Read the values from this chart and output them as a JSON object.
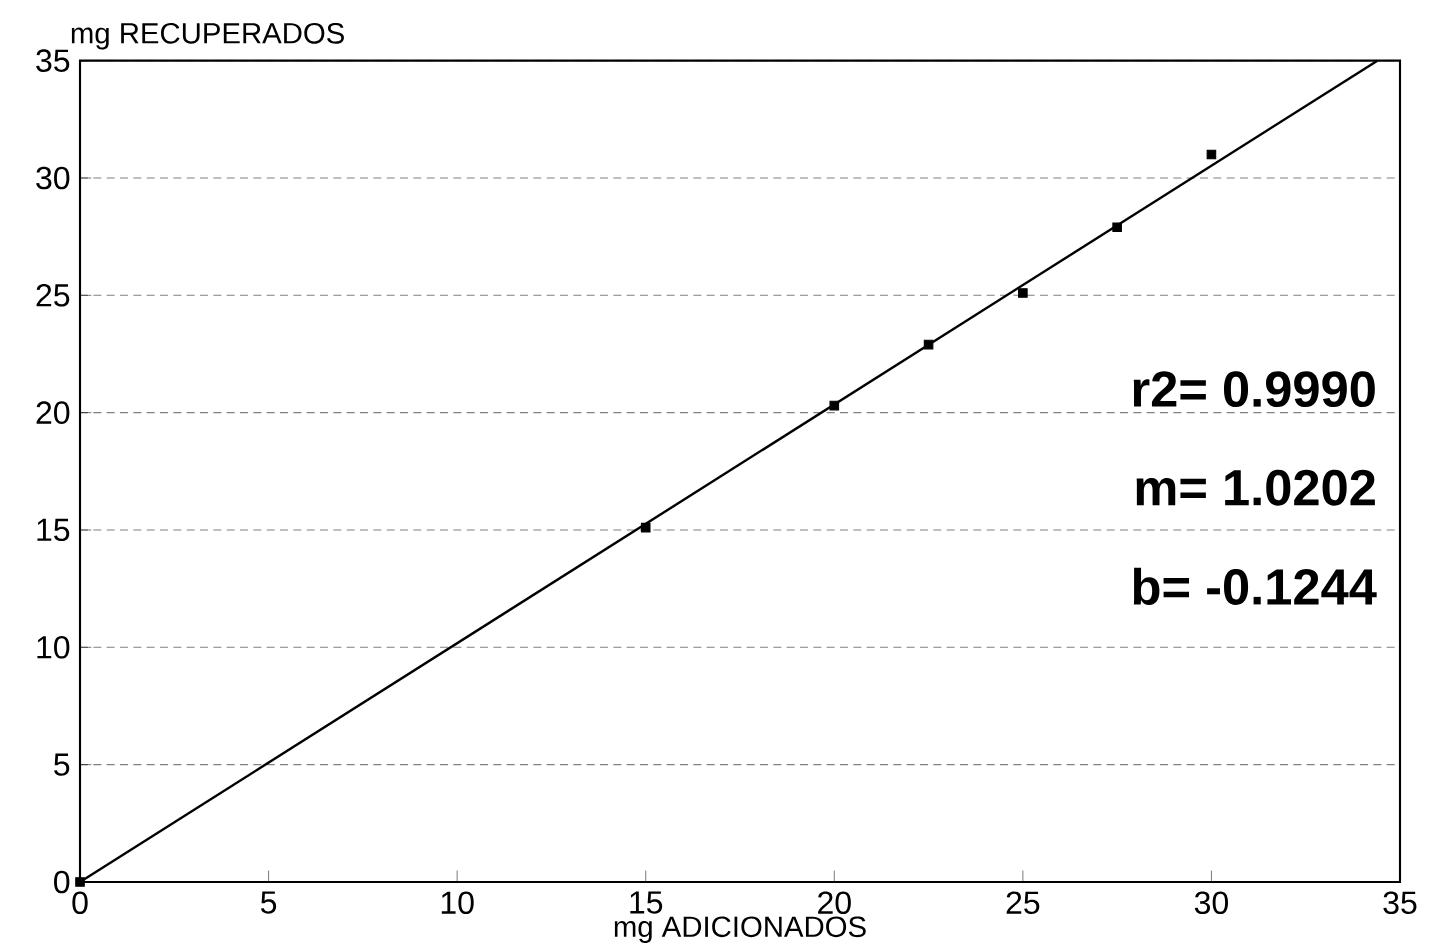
{
  "chart_data": {
    "type": "scatter",
    "xlabel": "mg ADICIONADOS",
    "ylabel": "mg RECUPERADOS",
    "xlim": [
      0,
      35
    ],
    "ylim": [
      0,
      35
    ],
    "xticks": [
      0,
      5,
      10,
      15,
      20,
      25,
      30,
      35
    ],
    "yticks": [
      0,
      5,
      10,
      15,
      20,
      25,
      30,
      35
    ],
    "grid": "y",
    "series": [
      {
        "color": "#000000",
        "marker": "square",
        "x": [
          0,
          15,
          20,
          22.5,
          25,
          27.5,
          30
        ],
        "values": [
          0,
          15.1,
          20.3,
          22.9,
          25.1,
          27.9,
          31.0
        ]
      },
      {
        "type": "line",
        "color": "#000000",
        "x": [
          0,
          34.4
        ],
        "values": [
          0,
          35
        ]
      }
    ],
    "annotations": [
      "r2= 0.9990",
      "m= 1.0202",
      "b= -0.1244"
    ]
  }
}
